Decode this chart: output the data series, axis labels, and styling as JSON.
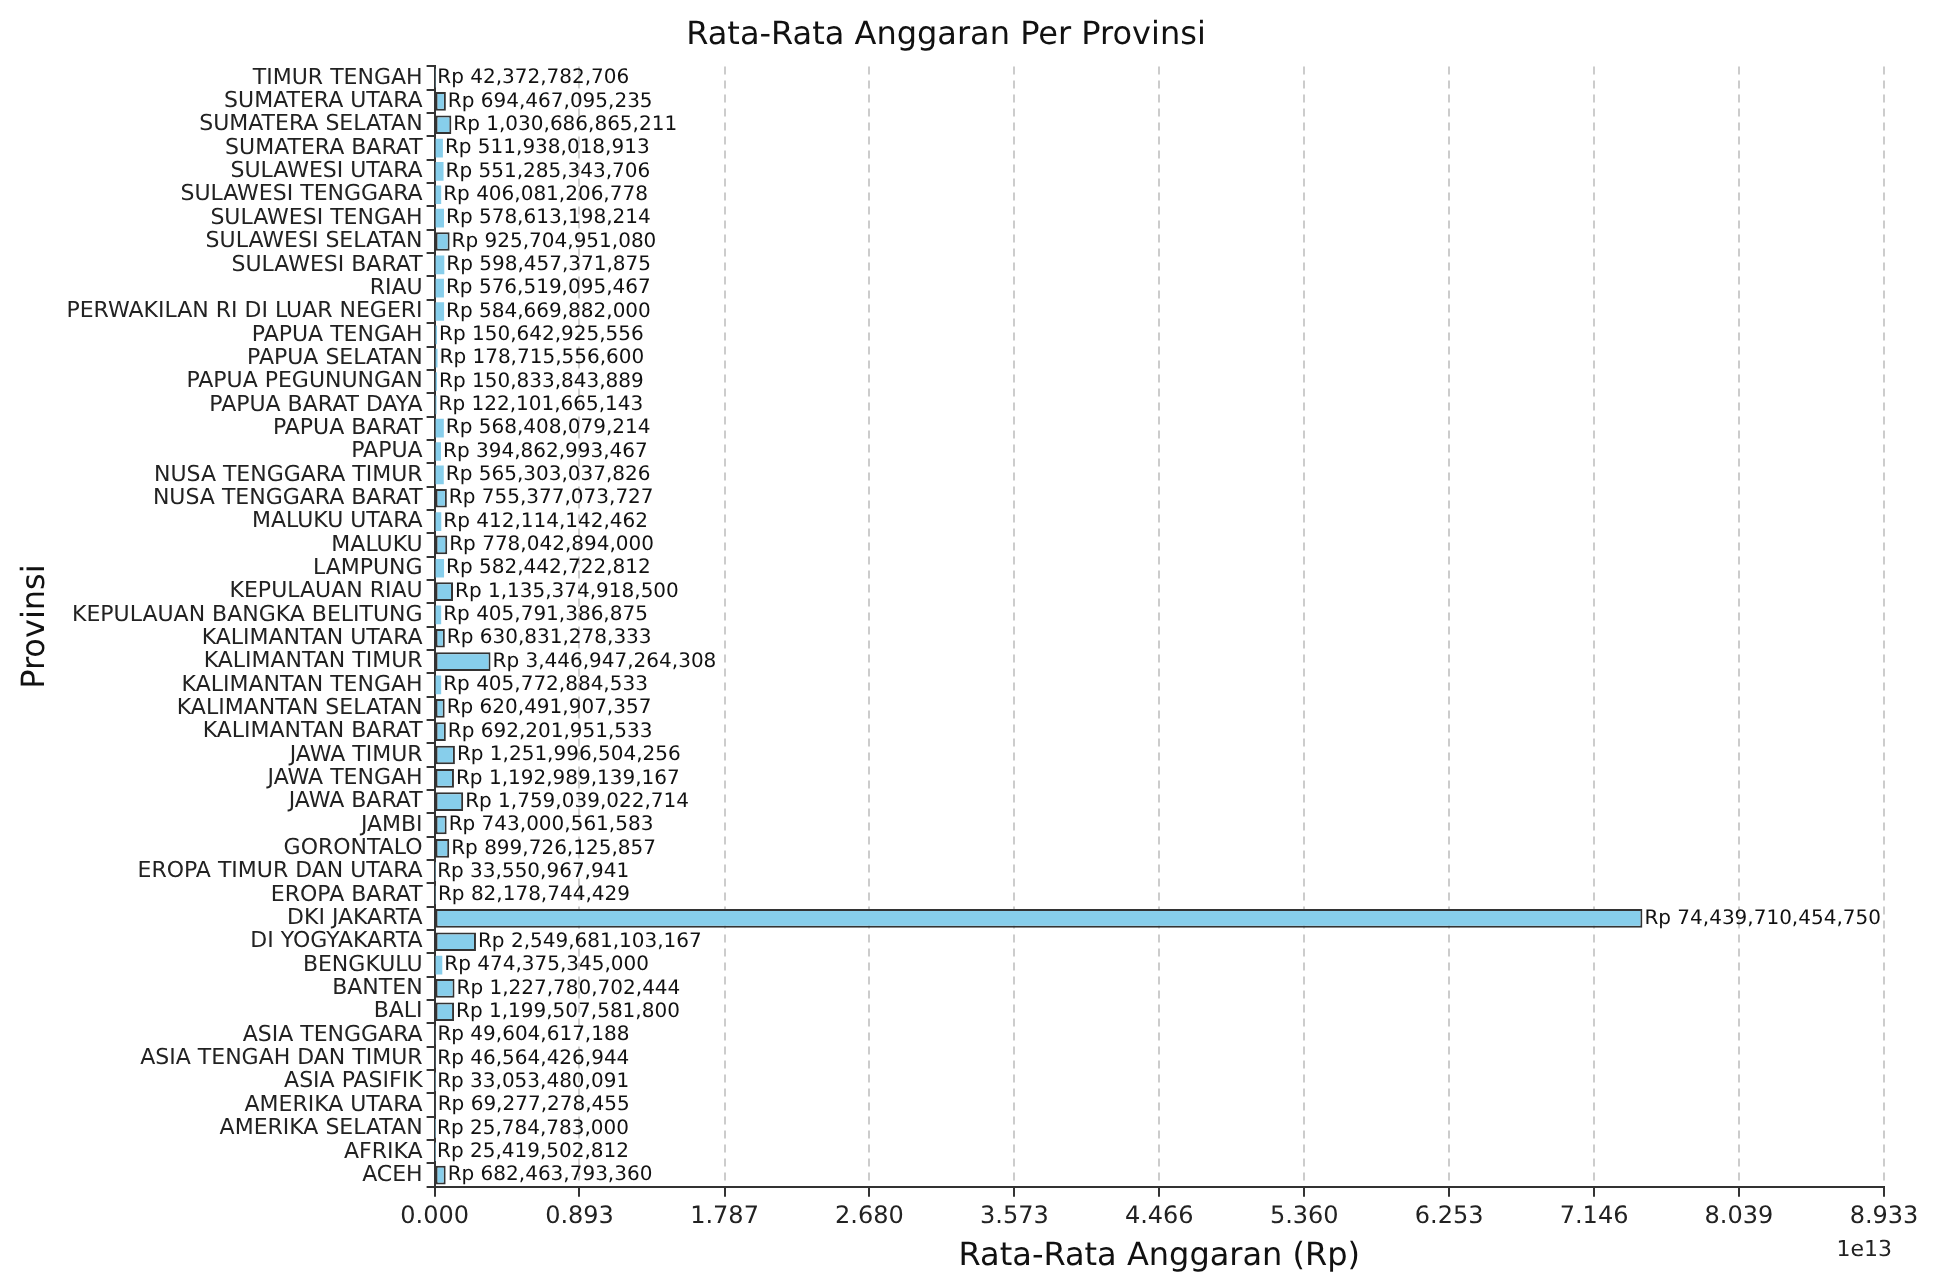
{
  "chart_data": {
    "type": "bar",
    "orientation": "horizontal",
    "title": "Rata-Rata Anggaran Per Provinsi",
    "xlabel": "Rata-Rata Anggaran (Rp)",
    "ylabel": "Provinsi",
    "annotations": [
      "1e13"
    ],
    "categories": [
      "TIMUR TENGAH",
      "SUMATERA UTARA",
      "SUMATERA SELATAN",
      "SUMATERA BARAT",
      "SULAWESI UTARA",
      "SULAWESI TENGGARA",
      "SULAWESI TENGAH",
      "SULAWESI SELATAN",
      "SULAWESI BARAT",
      "RIAU",
      "PERWAKILAN RI DI LUAR NEGERI",
      "PAPUA TENGAH",
      "PAPUA SELATAN",
      "PAPUA PEGUNUNGAN",
      "PAPUA BARAT DAYA",
      "PAPUA BARAT",
      "PAPUA",
      "NUSA TENGGARA TIMUR",
      "NUSA TENGGARA BARAT",
      "MALUKU UTARA",
      "MALUKU",
      "LAMPUNG",
      "KEPULAUAN RIAU",
      "KEPULAUAN BANGKA BELITUNG",
      "KALIMANTAN UTARA",
      "KALIMANTAN TIMUR",
      "KALIMANTAN TENGAH",
      "KALIMANTAN SELATAN",
      "KALIMANTAN BARAT",
      "JAWA TIMUR",
      "JAWA TENGAH",
      "JAWA BARAT",
      "JAMBI",
      "GORONTALO",
      "EROPA TIMUR DAN UTARA",
      "EROPA BARAT",
      "DKI JAKARTA",
      "DI YOGYAKARTA",
      "BENGKULU",
      "BANTEN",
      "BALI",
      "ASIA TENGGARA",
      "ASIA TENGAH DAN TIMUR",
      "ASIA PASIFIK",
      "AMERIKA UTARA",
      "AMERIKA SELATAN",
      "AFRIKA",
      "ACEH"
    ],
    "values": [
      0.0042372782706,
      0.0694467095235,
      0.1030686865211,
      0.0511938018913,
      0.0551285343706,
      0.0406081206778,
      0.0578613198214,
      0.092570495108,
      0.0598457371875,
      0.0576519095467,
      0.0584669882,
      0.0150642925556,
      0.01787155566,
      0.0150833843889,
      0.0122101665143,
      0.0568408079214,
      0.0394862993467,
      0.0565303037826,
      0.0755377073727,
      0.0412114142462,
      0.0778042894,
      0.0582442722812,
      0.11353749185,
      0.0405791386875,
      0.0630831278333,
      0.3446947264308,
      0.0405772884533,
      0.0620491907357,
      0.0692201951533,
      0.1251996504256,
      0.1192989139167,
      0.1759039022714,
      0.0743000561583,
      0.0899726125857,
      0.0033550967941,
      0.0082178744429,
      7.443971045475,
      0.2549681103167,
      0.0474375345,
      0.1227780702444,
      0.11995075818,
      0.0049604617188,
      0.0046564426944,
      0.0033053480091,
      0.0069277278455,
      0.0025784783,
      0.0025419502812,
      0.068246379336
    ],
    "value_labels": [
      "Rp 42,372,782,706",
      "Rp 694,467,095,235",
      "Rp 1,030,686,865,211",
      "Rp 511,938,018,913",
      "Rp 551,285,343,706",
      "Rp 406,081,206,778",
      "Rp 578,613,198,214",
      "Rp 925,704,951,080",
      "Rp 598,457,371,875",
      "Rp 576,519,095,467",
      "Rp 584,669,882,000",
      "Rp 150,642,925,556",
      "Rp 178,715,556,600",
      "Rp 150,833,843,889",
      "Rp 122,101,665,143",
      "Rp 568,408,079,214",
      "Rp 394,862,993,467",
      "Rp 565,303,037,826",
      "Rp 755,377,073,727",
      "Rp 412,114,142,462",
      "Rp 778,042,894,000",
      "Rp 582,442,722,812",
      "Rp 1,135,374,918,500",
      "Rp 405,791,386,875",
      "Rp 630,831,278,333",
      "Rp 3,446,947,264,308",
      "Rp 405,772,884,533",
      "Rp 620,491,907,357",
      "Rp 692,201,951,533",
      "Rp 1,251,996,504,256",
      "Rp 1,192,989,139,167",
      "Rp 1,759,039,022,714",
      "Rp 743,000,561,583",
      "Rp 899,726,125,857",
      "Rp 33,550,967,941",
      "Rp 82,178,744,429",
      "Rp 74,439,710,454,750",
      "Rp 2,549,681,103,167",
      "Rp 474,375,345,000",
      "Rp 1,227,780,702,444",
      "Rp 1,199,507,581,800",
      "Rp 49,604,617,188",
      "Rp 46,564,426,944",
      "Rp 33,053,480,091",
      "Rp 69,277,278,455",
      "Rp 25,784,783,000",
      "Rp 25,419,502,812",
      "Rp 682,463,793,360"
    ],
    "color": "#87ceeb",
    "xlim": [
      0,
      8.933
    ],
    "xticks": [
      {
        "value": 0,
        "label": "0.000"
      },
      0.893,
      1.787,
      {
        "value": 2.68,
        "label": "2.680"
      },
      3.573,
      4.466,
      {
        "value": 5.36,
        "label": "5.360"
      },
      6.253,
      7.146,
      8.039,
      8.933
    ],
    "grid": "x",
    "legend": false
  }
}
